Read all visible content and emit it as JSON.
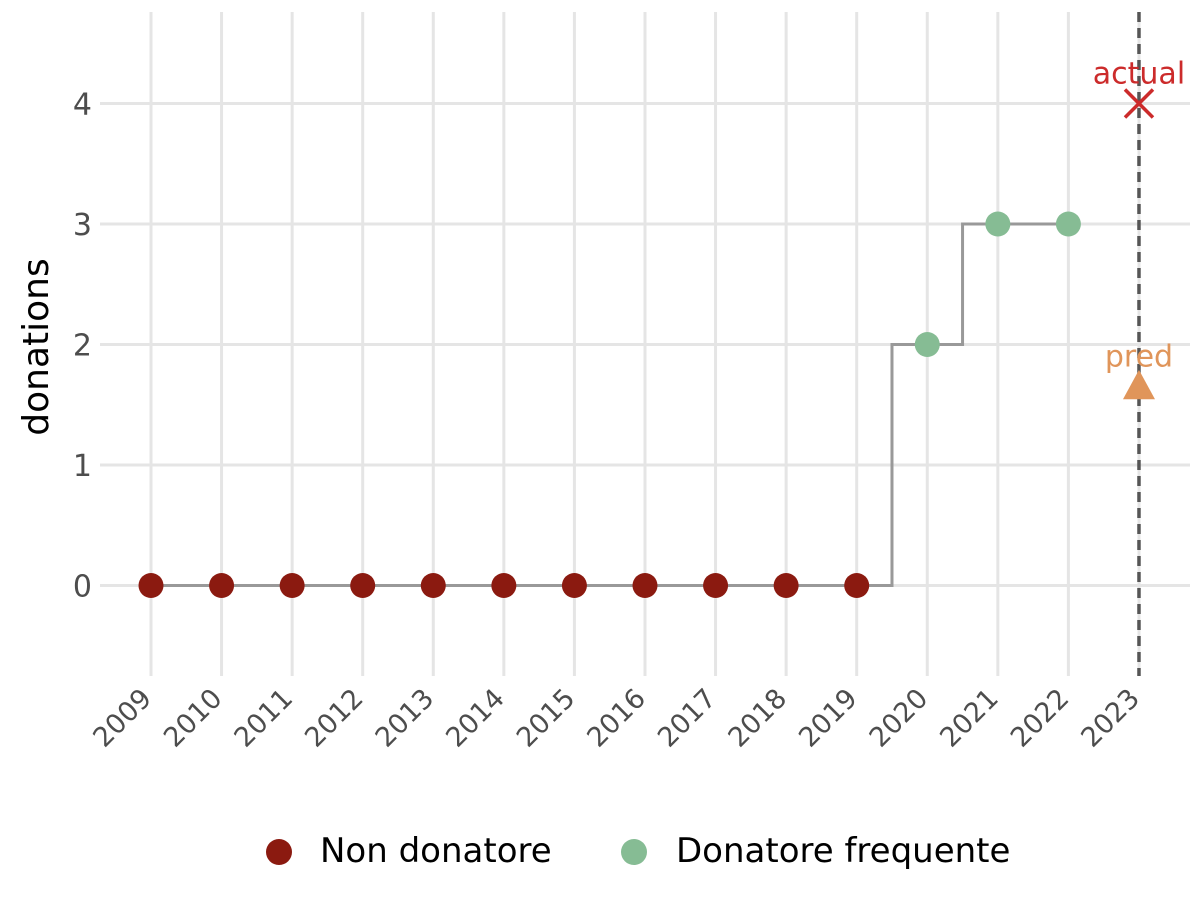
{
  "chart_data": {
    "type": "scatter",
    "title": "",
    "xlabel": "",
    "ylabel": "donations",
    "x": [
      "2009",
      "2010",
      "2011",
      "2012",
      "2013",
      "2014",
      "2015",
      "2016",
      "2017",
      "2018",
      "2019",
      "2020",
      "2021",
      "2022",
      "2023"
    ],
    "ylim": [
      -0.75,
      4.75
    ],
    "yticks": [
      "0",
      "1",
      "2",
      "3",
      "4"
    ],
    "grid": true,
    "legend_position": "bottom",
    "step_line": {
      "years": [
        2009,
        2010,
        2011,
        2012,
        2013,
        2014,
        2015,
        2016,
        2017,
        2018,
        2019,
        2020,
        2021,
        2022
      ],
      "values": [
        0,
        0,
        0,
        0,
        0,
        0,
        0,
        0,
        0,
        0,
        0,
        2,
        3,
        3
      ],
      "color": "#999999"
    },
    "series": [
      {
        "name": "Non donatore",
        "color": "#8b1a10",
        "points": [
          [
            2009,
            0
          ],
          [
            2010,
            0
          ],
          [
            2011,
            0
          ],
          [
            2012,
            0
          ],
          [
            2013,
            0
          ],
          [
            2014,
            0
          ],
          [
            2015,
            0
          ],
          [
            2016,
            0
          ],
          [
            2017,
            0
          ],
          [
            2018,
            0
          ],
          [
            2019,
            0
          ]
        ]
      },
      {
        "name": "Donatore frequente",
        "color": "#86bc94",
        "points": [
          [
            2020,
            2
          ],
          [
            2021,
            3
          ],
          [
            2022,
            3
          ]
        ]
      }
    ],
    "reference_line": {
      "x": 2023,
      "style": "dashed",
      "color": "#555555"
    },
    "annotations": [
      {
        "label": "actual",
        "x": 2023,
        "y": 4,
        "marker": "x",
        "color": "#cc2b2b"
      },
      {
        "label": "pred",
        "x": 2023,
        "y": 1.65,
        "marker": "triangle",
        "color": "#e0955a"
      }
    ]
  }
}
